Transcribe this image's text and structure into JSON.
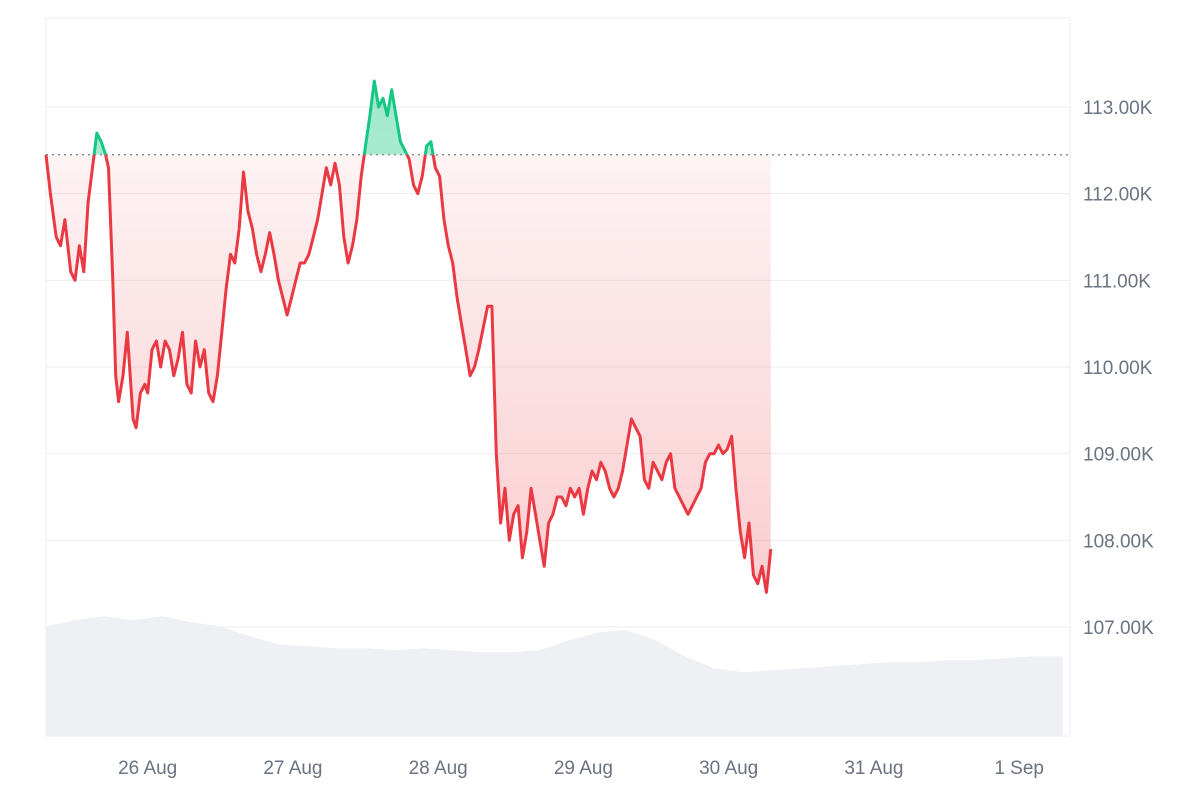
{
  "chart_data": {
    "type": "line",
    "title": "",
    "xlabel": "",
    "ylabel": "",
    "baseline_value": 112450,
    "ylim": [
      106000,
      114000
    ],
    "y_ticks": [
      {
        "value": 107000,
        "label": "107.00K"
      },
      {
        "value": 108000,
        "label": "108.00K"
      },
      {
        "value": 109000,
        "label": "109.00K"
      },
      {
        "value": 110000,
        "label": "110.00K"
      },
      {
        "value": 111000,
        "label": "111.00K"
      },
      {
        "value": 112000,
        "label": "112.00K"
      },
      {
        "value": 113000,
        "label": "113.00K"
      }
    ],
    "x_ticks": [
      "26 Aug",
      "27 Aug",
      "28 Aug",
      "29 Aug",
      "30 Aug",
      "31 Aug",
      "1 Sep"
    ],
    "x_range_days": [
      25.3,
      32.35
    ],
    "grid": true,
    "colors": {
      "above": "#16c784",
      "below": "#ea3943",
      "volume": "#eef0f3",
      "baseline": "#888888"
    },
    "series": [
      {
        "values": [
          [
            25.3,
            112450
          ],
          [
            25.33,
            112000
          ],
          [
            25.37,
            111500
          ],
          [
            25.4,
            111400
          ],
          [
            25.43,
            111700
          ],
          [
            25.47,
            111100
          ],
          [
            25.5,
            111000
          ],
          [
            25.53,
            111400
          ],
          [
            25.56,
            111100
          ],
          [
            25.59,
            111900
          ],
          [
            25.62,
            112300
          ],
          [
            25.65,
            112700
          ],
          [
            25.68,
            112600
          ],
          [
            25.71,
            112450
          ],
          [
            25.73,
            112300
          ],
          [
            25.76,
            111000
          ],
          [
            25.78,
            109900
          ],
          [
            25.8,
            109600
          ],
          [
            25.83,
            109900
          ],
          [
            25.86,
            110400
          ],
          [
            25.88,
            109900
          ],
          [
            25.9,
            109400
          ],
          [
            25.92,
            109300
          ],
          [
            25.95,
            109700
          ],
          [
            25.98,
            109800
          ],
          [
            26.0,
            109700
          ],
          [
            26.03,
            110200
          ],
          [
            26.06,
            110300
          ],
          [
            26.09,
            110000
          ],
          [
            26.12,
            110300
          ],
          [
            26.15,
            110200
          ],
          [
            26.18,
            109900
          ],
          [
            26.21,
            110100
          ],
          [
            26.24,
            110400
          ],
          [
            26.27,
            109800
          ],
          [
            26.3,
            109700
          ],
          [
            26.33,
            110300
          ],
          [
            26.36,
            110000
          ],
          [
            26.39,
            110200
          ],
          [
            26.42,
            109700
          ],
          [
            26.45,
            109600
          ],
          [
            26.48,
            109900
          ],
          [
            26.51,
            110400
          ],
          [
            26.54,
            110900
          ],
          [
            26.57,
            111300
          ],
          [
            26.6,
            111200
          ],
          [
            26.63,
            111600
          ],
          [
            26.66,
            112250
          ],
          [
            26.69,
            111800
          ],
          [
            26.72,
            111600
          ],
          [
            26.75,
            111300
          ],
          [
            26.78,
            111100
          ],
          [
            26.81,
            111300
          ],
          [
            26.84,
            111550
          ],
          [
            26.87,
            111300
          ],
          [
            26.9,
            111000
          ],
          [
            26.93,
            110800
          ],
          [
            26.96,
            110600
          ],
          [
            26.99,
            110800
          ],
          [
            27.02,
            111000
          ],
          [
            27.05,
            111200
          ],
          [
            27.08,
            111200
          ],
          [
            27.11,
            111300
          ],
          [
            27.14,
            111500
          ],
          [
            27.17,
            111700
          ],
          [
            27.2,
            112000
          ],
          [
            27.23,
            112300
          ],
          [
            27.26,
            112100
          ],
          [
            27.29,
            112350
          ],
          [
            27.32,
            112100
          ],
          [
            27.35,
            111500
          ],
          [
            27.38,
            111200
          ],
          [
            27.41,
            111400
          ],
          [
            27.44,
            111700
          ],
          [
            27.47,
            112200
          ],
          [
            27.5,
            112550
          ],
          [
            27.53,
            112900
          ],
          [
            27.56,
            113300
          ],
          [
            27.59,
            113000
          ],
          [
            27.62,
            113100
          ],
          [
            27.65,
            112900
          ],
          [
            27.68,
            113200
          ],
          [
            27.71,
            112900
          ],
          [
            27.74,
            112600
          ],
          [
            27.77,
            112500
          ],
          [
            27.8,
            112400
          ],
          [
            27.83,
            112100
          ],
          [
            27.86,
            112000
          ],
          [
            27.89,
            112200
          ],
          [
            27.92,
            112550
          ],
          [
            27.95,
            112600
          ],
          [
            27.98,
            112300
          ],
          [
            28.01,
            112200
          ],
          [
            28.04,
            111700
          ],
          [
            28.07,
            111400
          ],
          [
            28.1,
            111200
          ],
          [
            28.13,
            110800
          ],
          [
            28.16,
            110500
          ],
          [
            28.19,
            110200
          ],
          [
            28.22,
            109900
          ],
          [
            28.25,
            110000
          ],
          [
            28.28,
            110200
          ],
          [
            28.31,
            110450
          ],
          [
            28.34,
            110700
          ],
          [
            28.37,
            110700
          ],
          [
            28.4,
            109000
          ],
          [
            28.43,
            108200
          ],
          [
            28.46,
            108600
          ],
          [
            28.49,
            108000
          ],
          [
            28.52,
            108300
          ],
          [
            28.55,
            108400
          ],
          [
            28.58,
            107800
          ],
          [
            28.61,
            108100
          ],
          [
            28.64,
            108600
          ],
          [
            28.67,
            108300
          ],
          [
            28.7,
            108000
          ],
          [
            28.73,
            107700
          ],
          [
            28.76,
            108200
          ],
          [
            28.79,
            108300
          ],
          [
            28.82,
            108500
          ],
          [
            28.85,
            108500
          ],
          [
            28.88,
            108400
          ],
          [
            28.91,
            108600
          ],
          [
            28.94,
            108500
          ],
          [
            28.97,
            108600
          ],
          [
            29.0,
            108300
          ],
          [
            29.03,
            108600
          ],
          [
            29.06,
            108800
          ],
          [
            29.09,
            108700
          ],
          [
            29.12,
            108900
          ],
          [
            29.15,
            108800
          ],
          [
            29.18,
            108600
          ],
          [
            29.21,
            108500
          ],
          [
            29.24,
            108600
          ],
          [
            29.27,
            108800
          ],
          [
            29.3,
            109100
          ],
          [
            29.33,
            109400
          ],
          [
            29.36,
            109300
          ],
          [
            29.39,
            109200
          ],
          [
            29.42,
            108700
          ],
          [
            29.45,
            108600
          ],
          [
            29.48,
            108900
          ],
          [
            29.51,
            108800
          ],
          [
            29.54,
            108700
          ],
          [
            29.57,
            108900
          ],
          [
            29.6,
            109000
          ],
          [
            29.63,
            108600
          ],
          [
            29.66,
            108500
          ],
          [
            29.69,
            108400
          ],
          [
            29.72,
            108300
          ],
          [
            29.75,
            108400
          ],
          [
            29.78,
            108500
          ],
          [
            29.81,
            108600
          ],
          [
            29.84,
            108900
          ],
          [
            29.87,
            109000
          ],
          [
            29.9,
            109000
          ],
          [
            29.93,
            109100
          ],
          [
            29.96,
            109000
          ],
          [
            29.99,
            109050
          ],
          [
            30.02,
            109200
          ],
          [
            30.05,
            108600
          ],
          [
            30.08,
            108100
          ],
          [
            30.11,
            107800
          ],
          [
            30.14,
            108200
          ],
          [
            30.17,
            107600
          ],
          [
            30.2,
            107500
          ],
          [
            30.23,
            107700
          ],
          [
            30.26,
            107400
          ],
          [
            30.29,
            107900
          ]
        ]
      }
    ],
    "volume_profile": [
      [
        25.3,
        0.55
      ],
      [
        25.5,
        0.58
      ],
      [
        25.7,
        0.6
      ],
      [
        25.9,
        0.58
      ],
      [
        26.1,
        0.6
      ],
      [
        26.3,
        0.57
      ],
      [
        26.5,
        0.55
      ],
      [
        26.7,
        0.5
      ],
      [
        26.9,
        0.46
      ],
      [
        27.1,
        0.45
      ],
      [
        27.3,
        0.44
      ],
      [
        27.5,
        0.44
      ],
      [
        27.7,
        0.43
      ],
      [
        27.9,
        0.44
      ],
      [
        28.1,
        0.43
      ],
      [
        28.3,
        0.42
      ],
      [
        28.5,
        0.42
      ],
      [
        28.7,
        0.43
      ],
      [
        28.9,
        0.48
      ],
      [
        29.1,
        0.52
      ],
      [
        29.3,
        0.53
      ],
      [
        29.5,
        0.48
      ],
      [
        29.7,
        0.4
      ],
      [
        29.9,
        0.34
      ],
      [
        30.1,
        0.32
      ],
      [
        30.3,
        0.33
      ],
      [
        30.5,
        0.34
      ],
      [
        30.7,
        0.35
      ],
      [
        30.9,
        0.36
      ],
      [
        31.1,
        0.37
      ],
      [
        31.3,
        0.37
      ],
      [
        31.5,
        0.38
      ],
      [
        31.7,
        0.38
      ],
      [
        31.9,
        0.39
      ],
      [
        32.1,
        0.4
      ],
      [
        32.3,
        0.4
      ]
    ]
  }
}
